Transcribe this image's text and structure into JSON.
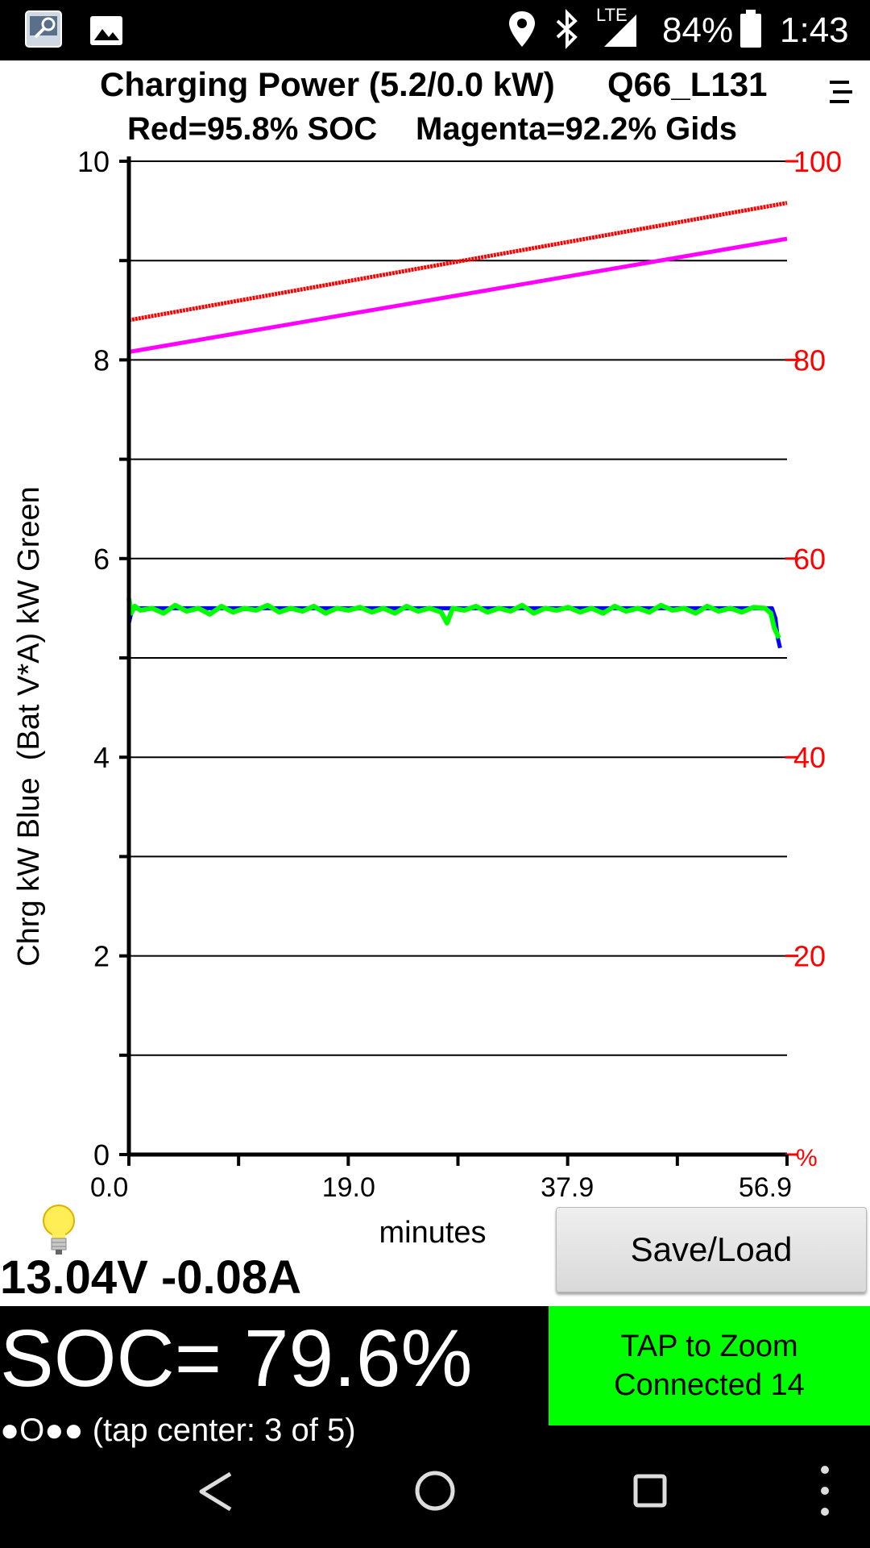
{
  "status_bar": {
    "battery_percent": "84%",
    "time": "1:43",
    "network": "LTE",
    "icons": [
      "app-thumbnail-icon",
      "image-icon",
      "location-icon",
      "bluetooth-icon",
      "signal-icon",
      "battery-icon"
    ]
  },
  "chart_data": {
    "type": "line",
    "title": "Charging Power (5.2/0.0 kW)",
    "title_id": "Q66_L131",
    "subtitle_soc": "Red=95.8% SOC",
    "subtitle_gids": "Magenta=92.2% Gids",
    "ylabel": "Chrg kW Blue  (Bat V*A) kW Green",
    "xlabel": "minutes",
    "xlim": [
      0,
      56.9
    ],
    "ylim": [
      0,
      10
    ],
    "y2lim": [
      0,
      100
    ],
    "x_ticks": [
      "0.0",
      "19.0",
      "37.9",
      "56.9"
    ],
    "y_ticks": [
      "0",
      "2",
      "4",
      "6",
      "8",
      "10"
    ],
    "y2_ticks": [
      "20",
      "40",
      "60",
      "80",
      "100"
    ],
    "y2_unit": "%",
    "grid": true,
    "series": [
      {
        "name": "Red",
        "axis": "right",
        "color": "#ff0000",
        "x": [
          0,
          56.9
        ],
        "values": [
          84.0,
          95.8
        ]
      },
      {
        "name": "Magenta",
        "axis": "right",
        "color": "#ff00ff",
        "x": [
          0,
          56.9
        ],
        "values": [
          80.8,
          92.2
        ]
      },
      {
        "name": "Blue",
        "axis": "left",
        "color": "#0000ff",
        "x": [
          0,
          0.3,
          3,
          10,
          20,
          30,
          40,
          50,
          55,
          55.6,
          55.9,
          56.1,
          56.3
        ],
        "values": [
          5.35,
          5.5,
          5.5,
          5.5,
          5.5,
          5.5,
          5.5,
          5.5,
          5.5,
          5.5,
          5.4,
          5.2,
          5.1
        ]
      },
      {
        "name": "Green",
        "axis": "left",
        "color": "#00ff00",
        "x": [
          0,
          0.2,
          0.5,
          1,
          2,
          3,
          4,
          5,
          6,
          7,
          8,
          9,
          10,
          11,
          12,
          13,
          14,
          15,
          16,
          17,
          18,
          19,
          20,
          21,
          22,
          23,
          24,
          25,
          26,
          27,
          27.5,
          28,
          29,
          30,
          31,
          32,
          33,
          34,
          35,
          36,
          37,
          38,
          39,
          40,
          41,
          42,
          43,
          44,
          45,
          46,
          47,
          48,
          49,
          50,
          51,
          52,
          53,
          54,
          55,
          55.5,
          55.8,
          56.0,
          56.2
        ],
        "values": [
          5.6,
          5.45,
          5.52,
          5.48,
          5.5,
          5.45,
          5.53,
          5.47,
          5.5,
          5.44,
          5.52,
          5.46,
          5.5,
          5.48,
          5.53,
          5.46,
          5.5,
          5.47,
          5.52,
          5.45,
          5.5,
          5.48,
          5.51,
          5.46,
          5.5,
          5.45,
          5.52,
          5.47,
          5.5,
          5.46,
          5.35,
          5.5,
          5.48,
          5.52,
          5.46,
          5.5,
          5.47,
          5.53,
          5.45,
          5.5,
          5.48,
          5.51,
          5.46,
          5.5,
          5.45,
          5.52,
          5.47,
          5.5,
          5.46,
          5.53,
          5.48,
          5.5,
          5.45,
          5.52,
          5.47,
          5.5,
          5.46,
          5.51,
          5.5,
          5.45,
          5.3,
          5.25,
          5.2
        ]
      }
    ]
  },
  "status": {
    "voltage_current": "13.04V -0.08A",
    "soc": "SOC= 79.6%",
    "tap_hint": "●O●● (tap center: 3 of 5)"
  },
  "buttons": {
    "save_load": "Save/Load",
    "tap_zoom": "TAP to Zoom",
    "connected": "Connected 14"
  },
  "colors": {
    "soc_line": "#ff0000",
    "gids_line": "#ff00ff",
    "charge_kw": "#0000ff",
    "bat_kw": "#00ff00",
    "right_axis_labels": "#ff0000",
    "zoom_box": "#00ff00"
  }
}
